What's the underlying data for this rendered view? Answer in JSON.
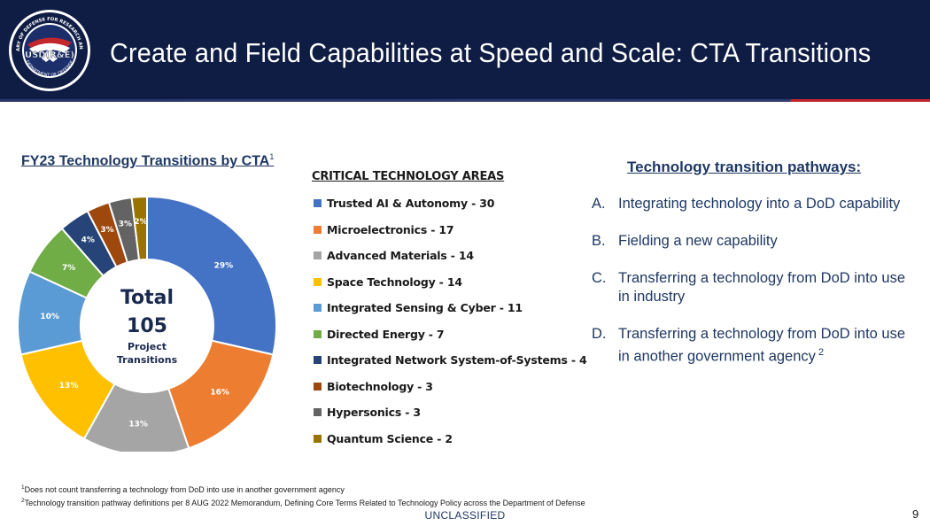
{
  "header": {
    "title": "Create and Field Capabilities at Speed and Scale: CTA Transitions",
    "seal_text": "UNDER SECRETARY OF DEFENSE FOR RESEARCH AND ENGINEERING",
    "seal_bottom_text": "DEPARTMENT OF DEFENSE",
    "seal_logo": "USD(R&E)",
    "bg_color": "#0f1d45"
  },
  "chart_data": {
    "type": "pie",
    "title": "FY23 Technology Transitions by CTA",
    "title_footnote": "1",
    "legend_title": "CRITICAL TECHNOLOGY AREAS",
    "legend_position": "right",
    "center": {
      "label": "Total",
      "value": "105",
      "sub1": "Project",
      "sub2": "Transitions"
    },
    "slices": [
      {
        "label": "Trusted AI & Autonomy - 30",
        "value": 30,
        "pct_label": "29%",
        "color": "#4472c4"
      },
      {
        "label": "Microelectronics - 17",
        "value": 17,
        "pct_label": "16%",
        "color": "#ed7d31"
      },
      {
        "label": "Advanced Materials - 14",
        "value": 14,
        "pct_label": "13%",
        "color": "#a5a5a5"
      },
      {
        "label": "Space Technology - 14",
        "value": 14,
        "pct_label": "13%",
        "color": "#ffc000"
      },
      {
        "label": "Integrated Sensing & Cyber - 11",
        "value": 11,
        "pct_label": "10%",
        "color": "#5b9bd5"
      },
      {
        "label": "Directed Energy - 7",
        "value": 7,
        "pct_label": "7%",
        "color": "#70ad47"
      },
      {
        "label": "Integrated Network System-of-Systems - 4",
        "value": 4,
        "pct_label": "4%",
        "color": "#264478"
      },
      {
        "label": "Biotechnology - 3",
        "value": 3,
        "pct_label": "3%",
        "color": "#9e480e"
      },
      {
        "label": "Hypersonics - 3",
        "value": 3,
        "pct_label": "3%",
        "color": "#636363"
      },
      {
        "label": "Quantum Science - 2",
        "value": 2,
        "pct_label": "2%",
        "color": "#997300"
      }
    ]
  },
  "pathways": {
    "title": "Technology transition pathways:",
    "items": [
      {
        "letter": "A.",
        "text": "Integrating technology into a DoD capability",
        "sup": ""
      },
      {
        "letter": "B.",
        "text": "Fielding a new capability",
        "sup": ""
      },
      {
        "letter": "C.",
        "text": "Transferring a technology from DoD into use in industry",
        "sup": ""
      },
      {
        "letter": "D.",
        "text": "Transferring a technology from DoD into use in another government agency",
        "sup": "2"
      }
    ]
  },
  "footnotes": [
    {
      "mark": "1",
      "text": "Does not count transferring a technology from DoD into use in another government agency"
    },
    {
      "mark": "2",
      "text": "Technology transition pathway definitions per 8 AUG 2022 Memorandum, Defining Core Terms Related to Technology Policy across the Department of Defense"
    }
  ],
  "classification": "UNCLASSIFIED",
  "page_number": "9"
}
